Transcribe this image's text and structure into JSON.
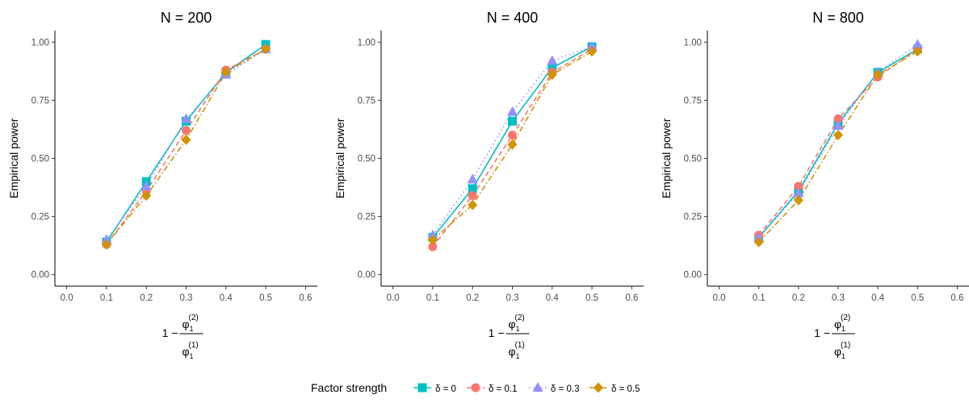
{
  "chart_data": [
    {
      "type": "line",
      "title": "N = 200",
      "ylabel": "Empirical power",
      "xlabel": {
        "prefix": "1 −",
        "numerator": "φ",
        "numerator_sub": "1",
        "numerator_sup": "(2)",
        "denominator": "φ",
        "denominator_sub": "1",
        "denominator_sup": "(1)"
      },
      "xlim": [
        0.0,
        0.6
      ],
      "ylim": [
        0.0,
        1.0
      ],
      "xticks": [
        "0.0",
        "0.1",
        "0.2",
        "0.3",
        "0.4",
        "0.5",
        "0.6"
      ],
      "yticks": [
        "0.00",
        "0.25",
        "0.50",
        "0.75",
        "1.00"
      ],
      "grid": false,
      "series": [
        {
          "name": "δ = 0",
          "color": "#00BFC4",
          "marker": "square",
          "linestyle": "solid",
          "x": [
            0.1,
            0.2,
            0.3,
            0.4,
            0.5
          ],
          "y": [
            0.14,
            0.4,
            0.66,
            0.87,
            0.99
          ]
        },
        {
          "name": "δ = 0.1",
          "color": "#F8766D",
          "marker": "circle",
          "linestyle": "dashed",
          "x": [
            0.1,
            0.2,
            0.3,
            0.4,
            0.5
          ],
          "y": [
            0.13,
            0.36,
            0.62,
            0.88,
            0.97
          ]
        },
        {
          "name": "δ = 0.3",
          "color": "#9590FF",
          "marker": "triangle",
          "linestyle": "dotted",
          "x": [
            0.1,
            0.2,
            0.3,
            0.4,
            0.5
          ],
          "y": [
            0.15,
            0.38,
            0.67,
            0.86,
            0.97
          ]
        },
        {
          "name": "δ = 0.5",
          "color": "#D39200",
          "marker": "diamond",
          "linestyle": "dotdash",
          "x": [
            0.1,
            0.2,
            0.3,
            0.4,
            0.5
          ],
          "y": [
            0.13,
            0.34,
            0.58,
            0.87,
            0.97
          ]
        }
      ]
    },
    {
      "type": "line",
      "title": "N = 400",
      "ylabel": "Empirical power",
      "xlabel": {
        "prefix": "1 −",
        "numerator": "φ",
        "numerator_sub": "1",
        "numerator_sup": "(2)",
        "denominator": "φ",
        "denominator_sub": "1",
        "denominator_sup": "(1)"
      },
      "xlim": [
        0.0,
        0.6
      ],
      "ylim": [
        0.0,
        1.0
      ],
      "xticks": [
        "0.0",
        "0.1",
        "0.2",
        "0.3",
        "0.4",
        "0.5",
        "0.6"
      ],
      "yticks": [
        "0.00",
        "0.25",
        "0.50",
        "0.75",
        "1.00"
      ],
      "grid": false,
      "series": [
        {
          "name": "δ = 0",
          "color": "#00BFC4",
          "marker": "square",
          "linestyle": "solid",
          "x": [
            0.1,
            0.2,
            0.3,
            0.4,
            0.5
          ],
          "y": [
            0.16,
            0.37,
            0.66,
            0.89,
            0.98
          ]
        },
        {
          "name": "δ = 0.1",
          "color": "#F8766D",
          "marker": "circle",
          "linestyle": "dashed",
          "x": [
            0.1,
            0.2,
            0.3,
            0.4,
            0.5
          ],
          "y": [
            0.12,
            0.34,
            0.6,
            0.87,
            0.97
          ]
        },
        {
          "name": "δ = 0.3",
          "color": "#9590FF",
          "marker": "triangle",
          "linestyle": "dotted",
          "x": [
            0.1,
            0.2,
            0.3,
            0.4,
            0.5
          ],
          "y": [
            0.17,
            0.41,
            0.7,
            0.92,
            0.98
          ]
        },
        {
          "name": "δ = 0.5",
          "color": "#D39200",
          "marker": "diamond",
          "linestyle": "dotdash",
          "x": [
            0.1,
            0.2,
            0.3,
            0.4,
            0.5
          ],
          "y": [
            0.15,
            0.3,
            0.56,
            0.86,
            0.96
          ]
        }
      ]
    },
    {
      "type": "line",
      "title": "N = 800",
      "ylabel": "Empirical power",
      "xlabel": {
        "prefix": "1 −",
        "numerator": "φ",
        "numerator_sub": "1",
        "numerator_sup": "(2)",
        "denominator": "φ",
        "denominator_sub": "1",
        "denominator_sup": "(1)"
      },
      "xlim": [
        0.0,
        0.6
      ],
      "ylim": [
        0.0,
        1.0
      ],
      "xticks": [
        "0.0",
        "0.1",
        "0.2",
        "0.3",
        "0.4",
        "0.5",
        "0.6"
      ],
      "yticks": [
        "0.00",
        "0.25",
        "0.50",
        "0.75",
        "1.00"
      ],
      "grid": false,
      "series": [
        {
          "name": "δ = 0",
          "color": "#00BFC4",
          "marker": "square",
          "linestyle": "solid",
          "x": [
            0.1,
            0.2,
            0.3,
            0.4,
            0.5
          ],
          "y": [
            0.16,
            0.36,
            0.65,
            0.87,
            0.97
          ]
        },
        {
          "name": "δ = 0.1",
          "color": "#F8766D",
          "marker": "circle",
          "linestyle": "dashed",
          "x": [
            0.1,
            0.2,
            0.3,
            0.4,
            0.5
          ],
          "y": [
            0.17,
            0.38,
            0.67,
            0.85,
            0.97
          ]
        },
        {
          "name": "δ = 0.3",
          "color": "#9590FF",
          "marker": "triangle",
          "linestyle": "dotted",
          "x": [
            0.1,
            0.2,
            0.3,
            0.4,
            0.5
          ],
          "y": [
            0.16,
            0.35,
            0.64,
            0.87,
            0.99
          ]
        },
        {
          "name": "δ = 0.5",
          "color": "#D39200",
          "marker": "diamond",
          "linestyle": "dotdash",
          "x": [
            0.1,
            0.2,
            0.3,
            0.4,
            0.5
          ],
          "y": [
            0.14,
            0.32,
            0.6,
            0.86,
            0.96
          ]
        }
      ]
    }
  ],
  "legend": {
    "title": "Factor strength",
    "position": "bottom",
    "entries": [
      "δ = 0",
      "δ = 0.1",
      "δ = 0.3",
      "δ = 0.5"
    ]
  }
}
